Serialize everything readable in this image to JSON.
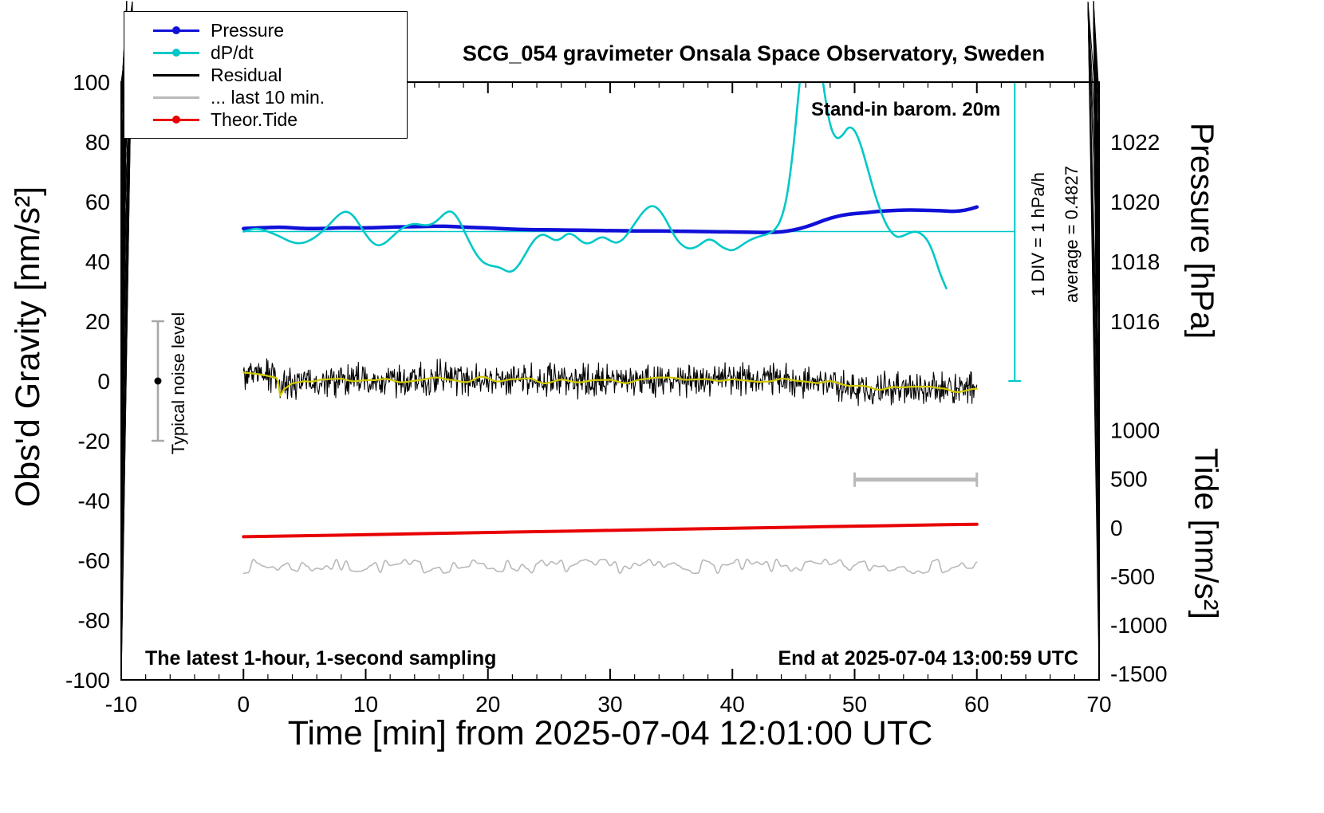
{
  "title": "SCG_054 gravimeter Onsala Space Observatory, Sweden",
  "annotations": {
    "stand_in": "Stand-in barom. 20m",
    "footer_left": "The latest 1-hour, 1-second sampling",
    "footer_right": "End at 2025-07-04 13:00:59 UTC",
    "div_scale": "1 DIV = 1 hPa/h",
    "average": "average = 0.4827",
    "noise_label": "Typical noise level"
  },
  "legend": [
    {
      "label": "Pressure",
      "color_key": "pressure",
      "marker": true
    },
    {
      "label": "dP/dt",
      "color_key": "dpdt",
      "marker": true
    },
    {
      "label": "Residual",
      "color_key": "residual",
      "marker": false
    },
    {
      "label": "... last 10 min.",
      "color_key": "last10",
      "marker": false
    },
    {
      "label": "Theor.Tide",
      "color_key": "tide",
      "marker": true
    }
  ],
  "chart_data": {
    "type": "line",
    "title": "SCG_054 gravimeter Onsala Space Observatory, Sweden",
    "xlabel": "Time [min] from 2025-07-04 12:01:00 UTC",
    "ylabel_left": "Obs'd Gravity [nm/s²]",
    "ylabel_pressure": "Pressure [hPa]",
    "ylabel_tide": "Tide [nm/s²]",
    "grid": false,
    "legend_position": "top-left",
    "axes": {
      "x": {
        "min": -10,
        "max": 70,
        "major": 10,
        "minor": 2
      },
      "y_left": {
        "min": -100,
        "max": 100,
        "major": 20,
        "minor": 5
      },
      "pressure": {
        "ref_hpa": 1019,
        "ref_g": 50,
        "g_per_hpa": 10,
        "major_ticks": [
          1016,
          1018,
          1020,
          1022
        ],
        "minor_step": 0.5,
        "minor_range": [
          1015,
          1023.5
        ]
      },
      "tide": {
        "g_at_zero": -49,
        "tide_per_g": 30.7,
        "major_ticks": [
          1000,
          500,
          0,
          -500,
          -1000,
          -1500
        ],
        "minor_step": 100,
        "minor_range": [
          -1500,
          1000
        ]
      }
    },
    "colors": {
      "pressure": "#1010d8",
      "dpdt": "#00c8c8",
      "residual": "#000000",
      "residual_smooth": "#d2c900",
      "last10": "#b9b9b9",
      "tide": "#e80000",
      "noise_bar": "#a8a8a8",
      "ten_min_bar": "#b9b9b9"
    },
    "series": {
      "pressure_hpa": {
        "axis": "pressure",
        "x_start": 0,
        "x_step": 1,
        "values": [
          1019.1,
          1019.12,
          1019.13,
          1019.15,
          1019.12,
          1019.1,
          1019.1,
          1019.11,
          1019.13,
          1019.12,
          1019.12,
          1019.13,
          1019.15,
          1019.16,
          1019.16,
          1019.17,
          1019.18,
          1019.17,
          1019.15,
          1019.13,
          1019.12,
          1019.1,
          1019.08,
          1019.07,
          1019.06,
          1019.06,
          1019.05,
          1019.05,
          1019.04,
          1019.04,
          1019.03,
          1019.03,
          1019.02,
          1019.02,
          1019.02,
          1019.01,
          1019.01,
          1019.0,
          1019.0,
          1018.99,
          1018.99,
          1018.98,
          1018.97,
          1018.97,
          1018.98,
          1019.05,
          1019.15,
          1019.3,
          1019.45,
          1019.55,
          1019.6,
          1019.63,
          1019.68,
          1019.7,
          1019.72,
          1019.72,
          1019.71,
          1019.7,
          1019.67,
          1019.7,
          1019.82
        ]
      },
      "dpdt_g": {
        "axis": "gravity",
        "x_start": 0,
        "x_step": 0.5,
        "ref_g": 50,
        "note": "plotted about the reference line, 1 DIV = 1 hPa/h",
        "values": [
          50.0,
          50.6,
          51.0,
          50.7,
          50.0,
          49.2,
          48.3,
          47.2,
          46.4,
          46.0,
          46.3,
          47.2,
          48.5,
          50.2,
          52.2,
          54.5,
          56.3,
          56.8,
          55.3,
          52.3,
          49.0,
          46.4,
          45.2,
          45.9,
          47.6,
          49.6,
          51.2,
          52.2,
          52.6,
          52.3,
          52.0,
          52.6,
          54.2,
          56.3,
          57.0,
          54.8,
          50.8,
          46.4,
          42.6,
          40.0,
          38.8,
          38.4,
          38.0,
          36.7,
          36.5,
          38.6,
          42.0,
          45.6,
          48.2,
          49.2,
          48.2,
          46.9,
          47.6,
          49.4,
          49.0,
          47.1,
          45.9,
          46.3,
          47.8,
          48.2,
          46.9,
          46.1,
          47.1,
          49.6,
          52.6,
          55.6,
          57.9,
          58.8,
          57.4,
          54.4,
          50.4,
          47.0,
          45.0,
          44.2,
          44.7,
          46.1,
          47.5,
          47.0,
          45.2,
          44.1,
          43.6,
          44.6,
          46.1,
          47.3,
          48.1,
          48.7,
          49.3,
          50.6,
          54.0,
          62.0,
          78.0,
          100.0,
          118.0,
          123.0,
          113.0,
          97.0,
          85.0,
          80.8,
          82.0,
          85.2,
          84.2,
          79.2,
          72.0,
          64.6,
          58.2,
          53.0,
          49.6,
          48.0,
          48.6,
          49.6,
          50.1,
          49.2,
          47.0,
          42.2,
          35.8,
          31.0
        ]
      },
      "residual_g": {
        "axis": "gravity",
        "noise_amp": 6.5,
        "x": [
          0,
          1,
          2,
          2.8,
          3,
          3.3,
          4,
          5,
          6,
          8,
          10,
          12,
          14,
          16,
          18,
          20,
          22,
          24,
          26,
          28,
          30,
          32,
          34,
          36,
          38,
          40,
          42,
          44,
          46,
          48,
          50,
          52,
          54,
          56,
          58,
          60
        ],
        "y": [
          3,
          2.5,
          2,
          1.5,
          -4.5,
          -2.5,
          -0.5,
          0,
          -0.5,
          0,
          0.5,
          0,
          0.5,
          1,
          0.5,
          0.5,
          0.5,
          0,
          0.5,
          0,
          0.5,
          0,
          0.5,
          0,
          0.5,
          1,
          0,
          0.5,
          0,
          -1,
          -2,
          -2.5,
          -3,
          -2.5,
          -3,
          -2.5
        ]
      },
      "last10_g": {
        "axis": "gravity",
        "noise_amp": 2.4,
        "x": [
          0,
          60
        ],
        "y": [
          -62,
          -62
        ]
      },
      "tide_nms2": {
        "axis": "tide",
        "x": [
          0,
          5,
          10,
          15,
          20,
          25,
          30,
          35,
          40,
          45,
          50,
          55,
          60
        ],
        "values": [
          -95,
          -85,
          -74,
          -63,
          -52,
          -41,
          -30,
          -19,
          -8,
          3,
          13,
          23,
          33
        ]
      }
    },
    "markers": {
      "noise_bar": {
        "t": -7,
        "g_min": -20,
        "g_max": 20
      },
      "ten_min_bar": {
        "t_min": 50,
        "t_max": 60,
        "g": -33
      },
      "dpdt_ref_line": {
        "g": 50,
        "t_min": 0,
        "t_max": 63.1
      },
      "dpdt_scale_bar": {
        "t": 63.1,
        "g_min": 0,
        "g_max": 100
      }
    }
  }
}
